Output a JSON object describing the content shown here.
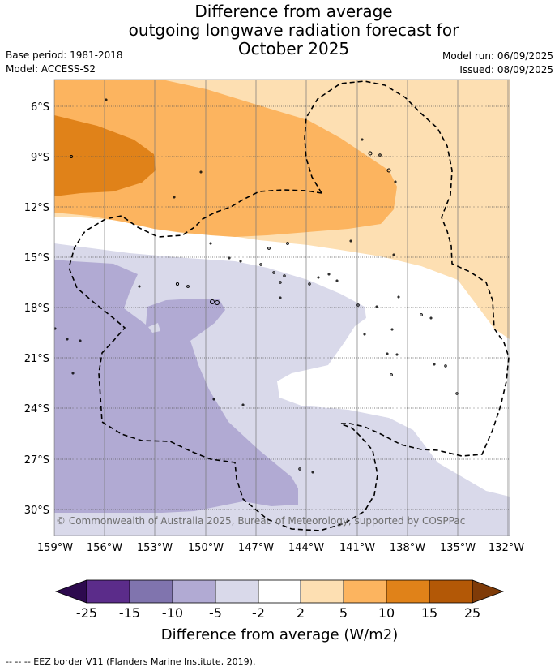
{
  "title": {
    "line1": "Difference from average",
    "line2": "outgoing longwave radiation forecast for",
    "line3": "October 2025"
  },
  "meta": {
    "base_period": "Base period: 1981-2018",
    "model": "Model: ACCESS-S2",
    "model_run": "Model run: 06/09/2025",
    "issued": "Issued: 08/09/2025"
  },
  "map": {
    "lat_labels": [
      "6°S",
      "9°S",
      "12°S",
      "15°S",
      "18°S",
      "21°S",
      "24°S",
      "27°S",
      "30°S"
    ],
    "lon_labels": [
      "159°W",
      "156°W",
      "153°W",
      "150°W",
      "147°W",
      "144°W",
      "141°W",
      "138°W",
      "135°W",
      "132°W"
    ],
    "copyright": "© Commonwealth of Australia 2025, Bureau of Meteorology, supported by COSPPac",
    "contour_colors": {
      "below_25_15": "#5b2c8a",
      "below_15_10": "#8074ae",
      "below_10_5": "#b1aad3",
      "below_5_2": "#d9d9ea",
      "neutral": "#ffffff",
      "above_2_5": "#fddfb2",
      "above_5_10": "#fcb45f",
      "above_10_15": "#e08219",
      "above_15_25": "#b35806"
    }
  },
  "colorbar": {
    "tick_labels": [
      "-25",
      "-15",
      "-10",
      "-5",
      "-2",
      "2",
      "5",
      "10",
      "15",
      "25"
    ],
    "title": "Difference from average (W/m2)",
    "colors": [
      "#2d0a4e",
      "#5b2c8a",
      "#8074ae",
      "#b1aad3",
      "#d9d9ea",
      "#ffffff",
      "#fddfb2",
      "#fcb45f",
      "#e08219",
      "#b35806",
      "#7f3b08"
    ]
  },
  "footer": "--  --  -- EEZ border V11 (Flanders Marine Institute, 2019)."
}
